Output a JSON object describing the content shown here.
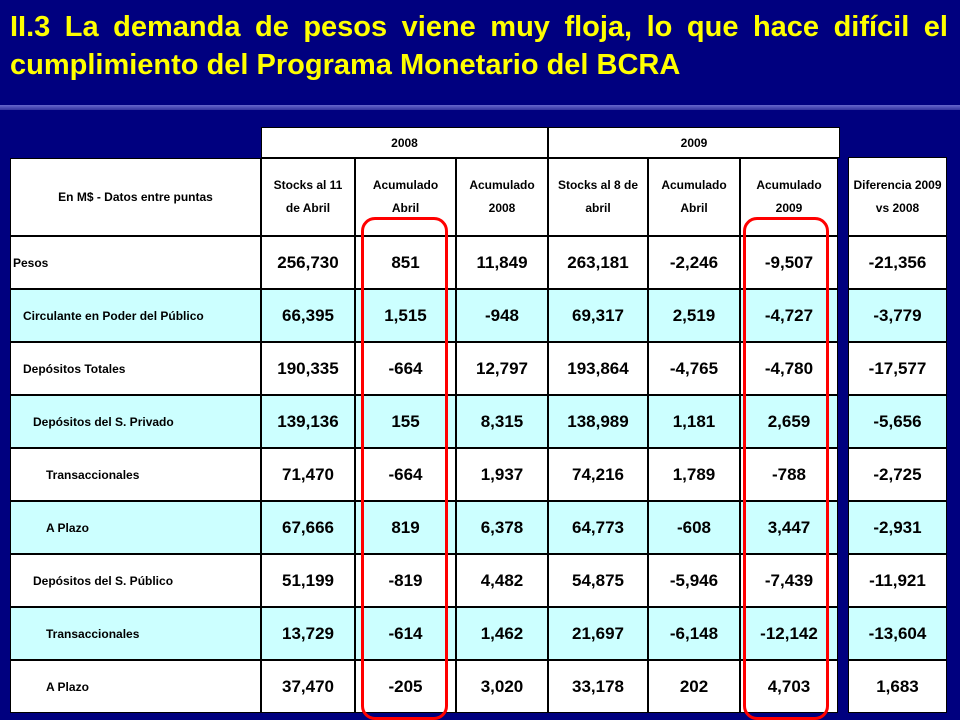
{
  "slide": {
    "title": "II.3 La demanda de pesos viene muy floja, lo que hace difícil el cumplimiento del Programa Monetario del BCRA"
  },
  "table": {
    "corner_label": "En M$ -  Datos entre puntas",
    "years": [
      "2008",
      "2009"
    ],
    "columns": [
      "Stocks al 11 de Abril",
      "Acumulado Abril",
      "Acumulado 2008",
      "Stocks al 8 de abril",
      "Acumulado Abril",
      "Acumulado 2009",
      "Diferencia 2009 vs 2008"
    ],
    "rows": [
      {
        "label": "Pesos",
        "values": [
          "256,730",
          "851",
          "11,849",
          "263,181",
          "-2,246",
          "-9,507",
          "-21,356"
        ]
      },
      {
        "label": "Circulante en Poder del Público",
        "values": [
          "66,395",
          "1,515",
          "-948",
          "69,317",
          "2,519",
          "-4,727",
          "-3,779"
        ]
      },
      {
        "label": "Depósitos Totales",
        "values": [
          "190,335",
          "-664",
          "12,797",
          "193,864",
          "-4,765",
          "-4,780",
          "-17,577"
        ]
      },
      {
        "label": "Depósitos del S. Privado",
        "values": [
          "139,136",
          "155",
          "8,315",
          "138,989",
          "1,181",
          "2,659",
          "-5,656"
        ]
      },
      {
        "label": "Transaccionales",
        "values": [
          "71,470",
          "-664",
          "1,937",
          "74,216",
          "1,789",
          "-788",
          "-2,725"
        ]
      },
      {
        "label": "A Plazo",
        "values": [
          "67,666",
          "819",
          "6,378",
          "64,773",
          "-608",
          "3,447",
          "-2,931"
        ]
      },
      {
        "label": "Depósitos del S. Público",
        "values": [
          "51,199",
          "-819",
          "4,482",
          "54,875",
          "-5,946",
          "-7,439",
          "-11,921"
        ]
      },
      {
        "label": "Transaccionales",
        "values": [
          "13,729",
          "-614",
          "1,462",
          "21,697",
          "-6,148",
          "-12,142",
          "-13,604"
        ]
      },
      {
        "label": "A Plazo",
        "values": [
          "37,470",
          "-205",
          "3,020",
          "33,178",
          "202",
          "4,703",
          "1,683"
        ]
      }
    ]
  },
  "colors": {
    "background": "#00007f",
    "title": "#ffff00",
    "row_alt": "#ccffff",
    "highlight": "#ff0000"
  }
}
